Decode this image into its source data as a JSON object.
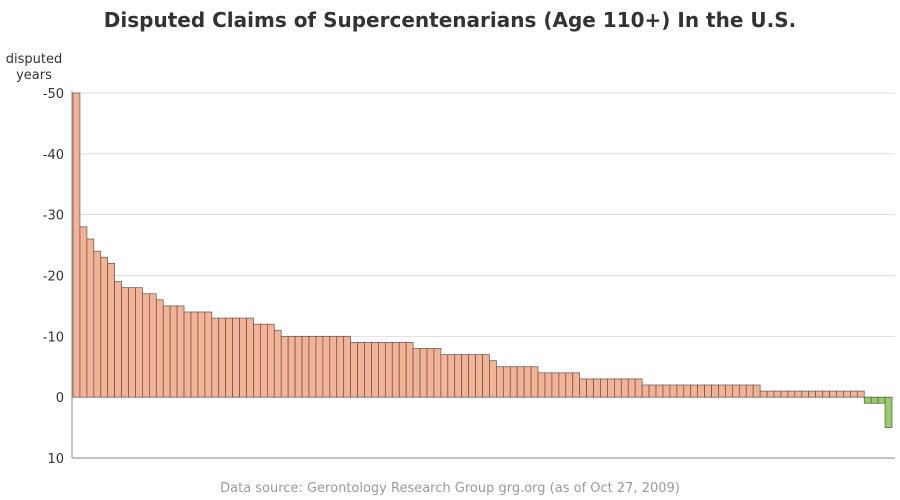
{
  "chart_data": {
    "type": "bar",
    "title": "Disputed Claims of Supercentenarians (Age 110+) In the U.S.",
    "ylabel": [
      "disputed",
      "years"
    ],
    "xlabel": "",
    "ylim": [
      -50,
      10
    ],
    "y_axis_reversed": true,
    "yticks": [
      "-50",
      "-40",
      "-30",
      "-20",
      "-10",
      "0",
      "10"
    ],
    "ytick_values": [
      -50,
      -40,
      -30,
      -20,
      -10,
      0,
      10
    ],
    "grid": true,
    "colors": {
      "negative": "#f6b294",
      "positive": "#99cc66",
      "outline": "#555555",
      "grid": "#dddddd"
    },
    "values": [
      -50,
      -28,
      -26,
      -24,
      -23,
      -22,
      -19,
      -18,
      -18,
      -18,
      -17,
      -17,
      -16,
      -15,
      -15,
      -15,
      -14,
      -14,
      -14,
      -14,
      -13,
      -13,
      -13,
      -13,
      -13,
      -13,
      -12,
      -12,
      -12,
      -11,
      -10,
      -10,
      -10,
      -10,
      -10,
      -10,
      -10,
      -10,
      -10,
      -10,
      -9,
      -9,
      -9,
      -9,
      -9,
      -9,
      -9,
      -9,
      -9,
      -8,
      -8,
      -8,
      -8,
      -7,
      -7,
      -7,
      -7,
      -7,
      -7,
      -7,
      -6,
      -5,
      -5,
      -5,
      -5,
      -5,
      -5,
      -4,
      -4,
      -4,
      -4,
      -4,
      -4,
      -3,
      -3,
      -3,
      -3,
      -3,
      -3,
      -3,
      -3,
      -3,
      -2,
      -2,
      -2,
      -2,
      -2,
      -2,
      -2,
      -2,
      -2,
      -2,
      -2,
      -2,
      -2,
      -2,
      -2,
      -2,
      -2,
      -1,
      -1,
      -1,
      -1,
      -1,
      -1,
      -1,
      -1,
      -1,
      -1,
      -1,
      -1,
      -1,
      -1,
      -1,
      1,
      1,
      1,
      5
    ]
  },
  "footer": "Data source: Gerontology Research Group grg.org (as of Oct 27, 2009)"
}
